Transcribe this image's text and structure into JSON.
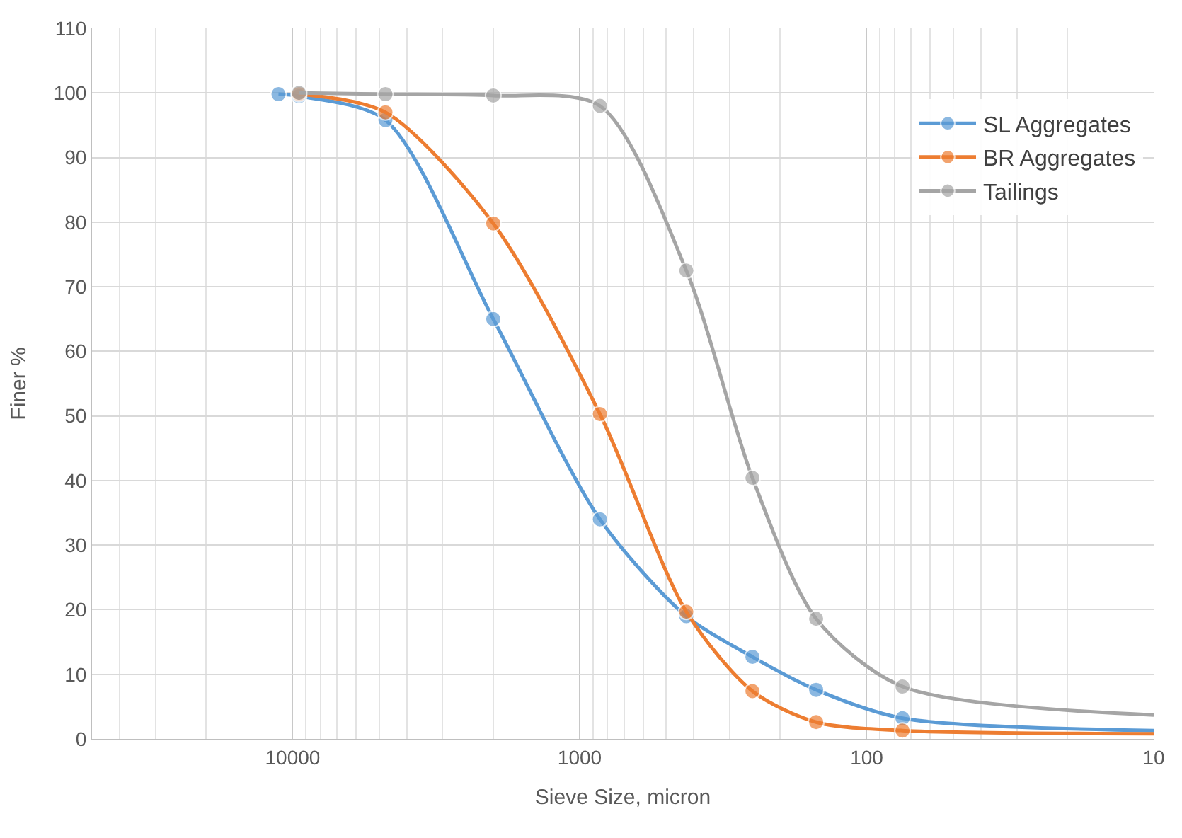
{
  "chart_data": {
    "type": "line",
    "xlabel": "Sieve Size, micron",
    "ylabel": "Finer %",
    "log": "x",
    "xlim": [
      50000,
      10
    ],
    "xticks": [
      10000,
      1000,
      100,
      10
    ],
    "ylim": [
      0,
      110
    ],
    "yticks": [
      0,
      10,
      20,
      30,
      40,
      50,
      60,
      70,
      80,
      90,
      100,
      110
    ],
    "grid": true,
    "legend": "right",
    "marker": "circle",
    "line_style": "solid",
    "series": [
      {
        "name": "SL Aggregates",
        "color": "#5b9bd5",
        "x": [
          11200,
          9500,
          4750,
          2000,
          850,
          425,
          250,
          150,
          75,
          10
        ],
        "values": [
          99.8,
          99.5,
          95.8,
          65,
          34,
          19,
          12.7,
          7.6,
          3.2,
          1.3
        ]
      },
      {
        "name": "BR Aggregates",
        "color": "#ed7d31",
        "x": [
          9500,
          4750,
          2000,
          850,
          425,
          250,
          150,
          75,
          10
        ],
        "values": [
          99.8,
          97,
          79.8,
          50.3,
          19.7,
          7.4,
          2.6,
          1.3,
          0.8
        ]
      },
      {
        "name": "Tailings",
        "color": "#a5a5a5",
        "x": [
          9500,
          4750,
          2000,
          850,
          425,
          250,
          150,
          75,
          10
        ],
        "values": [
          100,
          99.8,
          99.6,
          98,
          72.5,
          40.4,
          18.6,
          8.1,
          3.7
        ]
      }
    ]
  }
}
